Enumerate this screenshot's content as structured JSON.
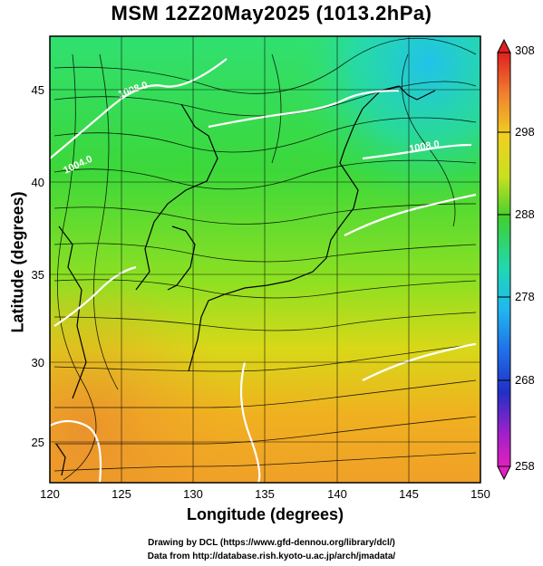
{
  "title": "MSM 12Z20May2025 (1013.2hPa)",
  "xaxis": {
    "label": "Longitude (degrees)",
    "ticks": [
      "120",
      "125",
      "130",
      "135",
      "140",
      "145",
      "150"
    ]
  },
  "yaxis": {
    "label": "Latitude  (degrees)",
    "ticks": [
      "25",
      "30",
      "35",
      "40",
      "45"
    ]
  },
  "colorbar": {
    "ticks": [
      "308",
      "298",
      "288",
      "278",
      "268",
      "258"
    ],
    "min": 258,
    "max": 308
  },
  "contour_labels": [
    "1008.0",
    "1004.0",
    "1008.0"
  ],
  "credits": {
    "line1": "Drawing by DCL (https://www.gfd-dennou.org/library/dcl/)",
    "line2": "Data from http://database.rish.kyoto-u.ac.jp/arch/jmadata/"
  },
  "map_data": {
    "lon_range": [
      120,
      150
    ],
    "lat_range": [
      22.5,
      47.5
    ],
    "field": "temperature (K) with surface wind streamlines and pressure contours"
  }
}
